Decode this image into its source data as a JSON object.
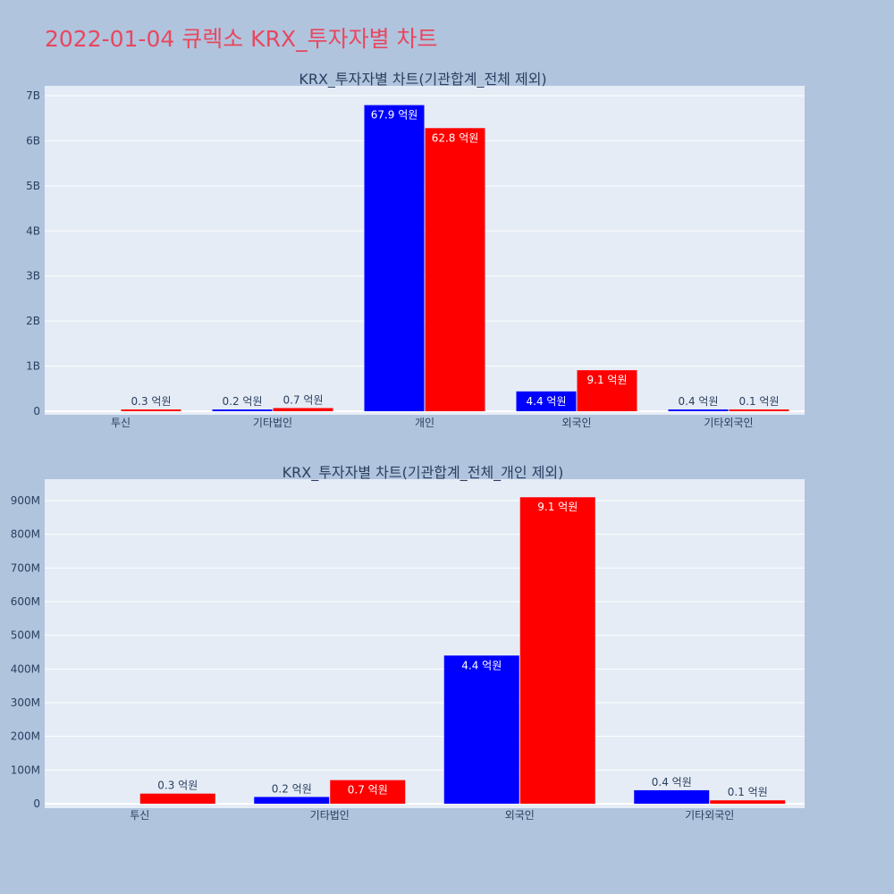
{
  "page_title": "2022-01-04 큐렉소 KRX_투자자별 차트",
  "colors": {
    "background": "#b0c4de",
    "plot_background": "#e5ecf6",
    "buy": "#0000ff",
    "sell": "#ff0000",
    "title": "#e8475f",
    "axis_text": "#2a3f5f"
  },
  "chart_data": [
    {
      "type": "bar",
      "title": "KRX_투자자별 차트(기관합계_전체 제외)",
      "categories": [
        "투신",
        "기타법인",
        "개인",
        "외국인",
        "기타외국인"
      ],
      "series": [
        {
          "color": "#0000ff",
          "values": [
            0,
            20000000,
            6790000000,
            440000000,
            40000000
          ],
          "labels": [
            "",
            "0.2 억원",
            "67.9 억원",
            "4.4 억원",
            "0.4 억원"
          ]
        },
        {
          "color": "#ff0000",
          "values": [
            30000000,
            70000000,
            6280000000,
            910000000,
            10000000
          ],
          "labels": [
            "0.3 억원",
            "0.7 억원",
            "62.8 억원",
            "9.1 억원",
            "0.1 억원"
          ]
        }
      ],
      "yticks": [
        "0",
        "1B",
        "2B",
        "3B",
        "4B",
        "5B",
        "6B",
        "7B"
      ],
      "ylim": [
        0,
        7000000000
      ],
      "grid": true
    },
    {
      "type": "bar",
      "title": "KRX_투자자별 차트(기관합계_전체_개인 제외)",
      "categories": [
        "투신",
        "기타법인",
        "외국인",
        "기타외국인"
      ],
      "series": [
        {
          "color": "#0000ff",
          "values": [
            0,
            20000000,
            440000000,
            40000000
          ],
          "labels": [
            "",
            "0.2 억원",
            "4.4 억원",
            "0.4 억원"
          ]
        },
        {
          "color": "#ff0000",
          "values": [
            30000000,
            70000000,
            910000000,
            10000000
          ],
          "labels": [
            "0.3 억원",
            "0.7 억원",
            "9.1 억원",
            "0.1 억원"
          ]
        }
      ],
      "yticks": [
        "0",
        "100M",
        "200M",
        "300M",
        "400M",
        "500M",
        "600M",
        "700M",
        "800M",
        "900M"
      ],
      "ylim": [
        0,
        900000000
      ],
      "grid": true
    }
  ]
}
